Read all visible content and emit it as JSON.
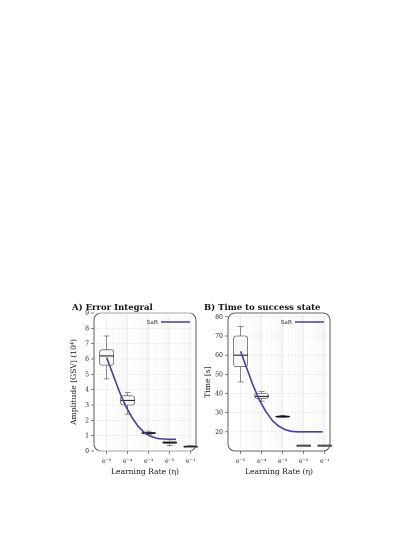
{
  "chart_data": [
    {
      "type": "box",
      "title": "A)  Error Integral",
      "xlabel": "Learning Rate (η)",
      "ylabel": "Amplitude [GSV] (10⁴)",
      "x_scale": "log",
      "x_ticks": [
        "e⁻⁵",
        "e⁻⁴",
        "e⁻³",
        "e⁻²",
        "e⁻¹"
      ],
      "ylim": [
        0,
        9
      ],
      "y_ticks": [
        "0",
        "1",
        "2",
        "3",
        "4",
        "5",
        "6",
        "7",
        "8",
        "9"
      ],
      "grid": true,
      "legend_position": "top-right",
      "boxes": [
        {
          "x": -5,
          "whisker_low": 4.7,
          "q1": 5.6,
          "median": 6.2,
          "q3": 6.6,
          "whisker_high": 7.5
        },
        {
          "x": -4,
          "whisker_low": 2.4,
          "q1": 3.0,
          "median": 3.3,
          "q3": 3.6,
          "whisker_high": 3.8
        },
        {
          "x": -3,
          "whisker_low": 1.05,
          "q1": 1.12,
          "median": 1.17,
          "q3": 1.22,
          "whisker_high": 1.3
        },
        {
          "x": -2,
          "whisker_low": 0.35,
          "q1": 0.48,
          "median": 0.55,
          "q3": 0.62,
          "whisker_high": 0.75
        },
        {
          "x": -1,
          "whisker_low": 0.25,
          "q1": 0.28,
          "median": 0.3,
          "q3": 0.32,
          "whisker_high": 0.35
        }
      ],
      "series": [
        {
          "name": "SaR",
          "color": "#4a3f9a",
          "x": [
            -5,
            -4.7,
            -4.4,
            -4.1,
            -3.8,
            -3.5,
            -3.2,
            -2.9,
            -2.6,
            -2.3,
            -2.0,
            -1.7
          ],
          "y": [
            6.1,
            5.0,
            3.9,
            2.95,
            2.2,
            1.6,
            1.2,
            0.95,
            0.82,
            0.78,
            0.76,
            0.76
          ]
        }
      ]
    },
    {
      "type": "box",
      "title": "B)  Time to success state",
      "xlabel": "Learning Rate (η)",
      "ylabel": "Time [s]",
      "x_scale": "log",
      "x_ticks": [
        "e⁻⁵",
        "e⁻⁴",
        "e⁻³",
        "e⁻²",
        "e⁻¹"
      ],
      "ylim": [
        10,
        82
      ],
      "y_ticks": [
        "20",
        "30",
        "40",
        "50",
        "60",
        "70",
        "80"
      ],
      "grid": true,
      "legend_position": "top-right",
      "boxes": [
        {
          "x": -5,
          "whisker_low": 46,
          "q1": 54,
          "median": 60,
          "q3": 70,
          "whisker_high": 75
        },
        {
          "x": -4,
          "whisker_low": 36,
          "q1": 37.5,
          "median": 38.5,
          "q3": 40,
          "whisker_high": 41
        },
        {
          "x": -3,
          "whisker_low": 27.5,
          "q1": 27.7,
          "median": 28,
          "q3": 28.3,
          "whisker_high": 28.6
        },
        {
          "x": -2,
          "whisker_low": 13,
          "q1": 13,
          "median": 13,
          "q3": 13,
          "whisker_high": 13
        },
        {
          "x": -1,
          "whisker_low": 13,
          "q1": 13,
          "median": 13,
          "q3": 13,
          "whisker_high": 13
        }
      ],
      "series": [
        {
          "name": "SaR",
          "color": "#4a3f9a",
          "x": [
            -5,
            -4.7,
            -4.4,
            -4.1,
            -3.8,
            -3.5,
            -3.2,
            -2.9,
            -2.6,
            -2.3,
            -2.0,
            -1.7,
            -1.4,
            -1.1
          ],
          "y": [
            62,
            53,
            44,
            36.5,
            30.5,
            26,
            23,
            21.2,
            20.3,
            20,
            20,
            20,
            20,
            20
          ]
        }
      ]
    }
  ]
}
